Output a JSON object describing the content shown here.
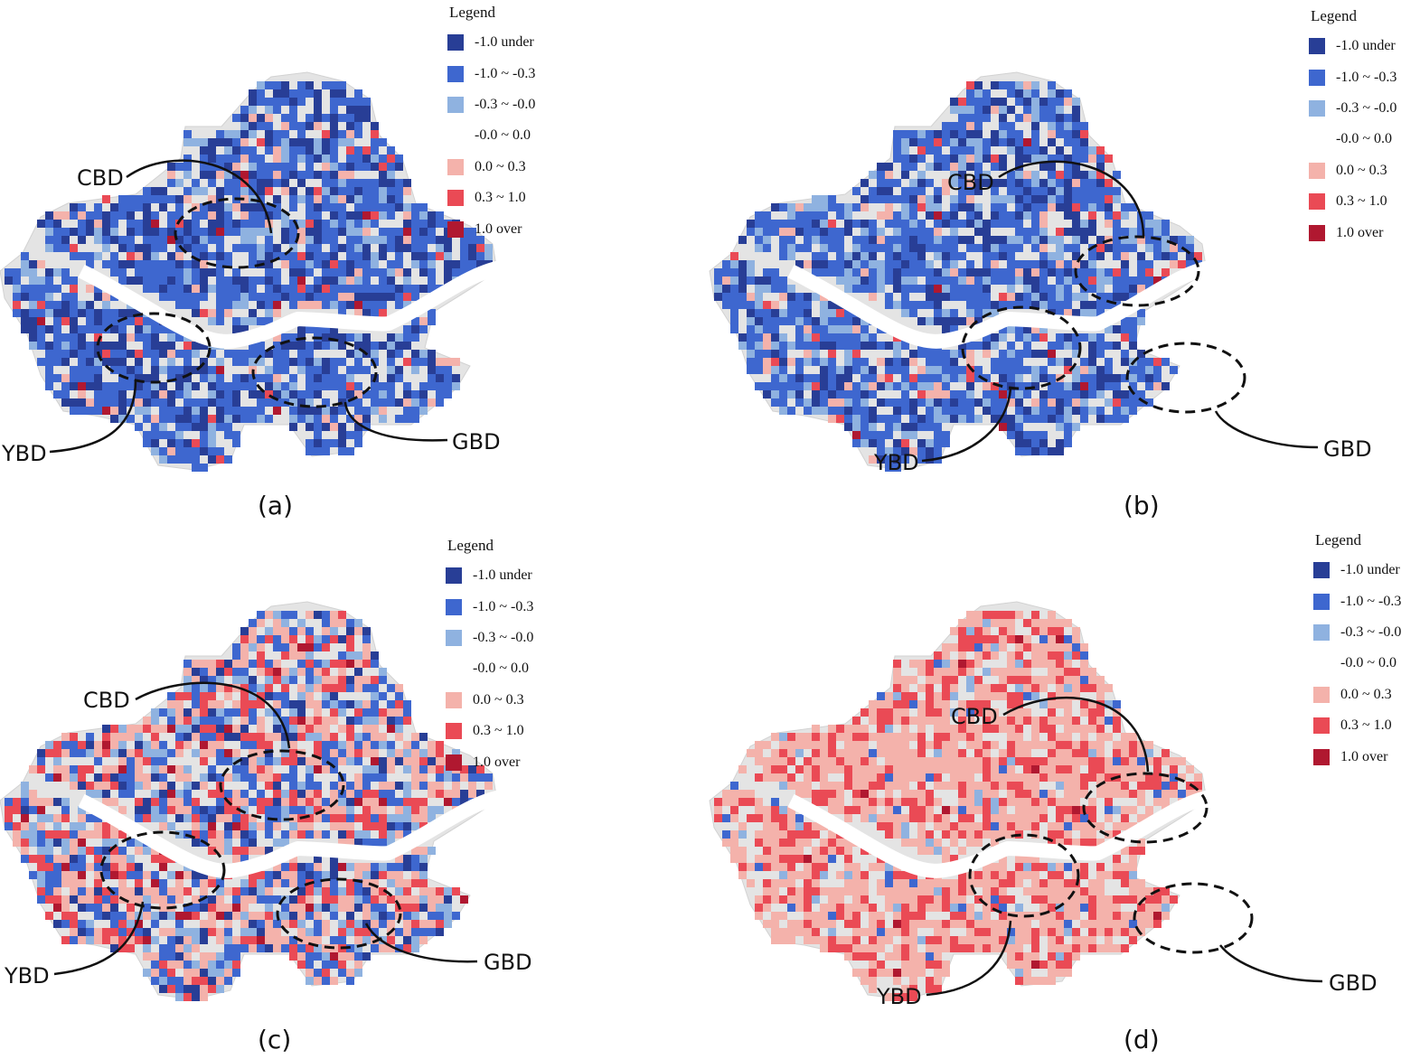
{
  "legend": {
    "title": "Legend",
    "items": [
      {
        "label": "-1.0 under",
        "color": "#283e96"
      },
      {
        "label": "-1.0 ~ -0.3",
        "color": "#3e67cf"
      },
      {
        "label": "-0.3 ~ -0.0",
        "color": "#8fb2e0"
      },
      {
        "label": "-0.0 ~ 0.0",
        "color": "#ffffff"
      },
      {
        "label": "0.0 ~ 0.3",
        "color": "#f4b2ab"
      },
      {
        "label": "0.3 ~ 1.0",
        "color": "#ea4a55"
      },
      {
        "label": "1.0 over",
        "color": "#b01830"
      }
    ]
  },
  "districts": {
    "cbd": "CBD",
    "ybd": "YBD",
    "gbd": "GBD"
  },
  "panels": [
    {
      "caption": "(a)",
      "weights": [
        0.26,
        0.52,
        0.12,
        0.0,
        0.06,
        0.03,
        0.01
      ]
    },
    {
      "caption": "(b)",
      "weights": [
        0.22,
        0.5,
        0.17,
        0.0,
        0.07,
        0.035,
        0.005
      ]
    },
    {
      "caption": "(c)",
      "weights": [
        0.1,
        0.22,
        0.16,
        0.0,
        0.3,
        0.18,
        0.04
      ]
    },
    {
      "caption": "(d)",
      "weights": [
        0.0,
        0.03,
        0.05,
        0.0,
        0.6,
        0.31,
        0.01
      ]
    }
  ]
}
